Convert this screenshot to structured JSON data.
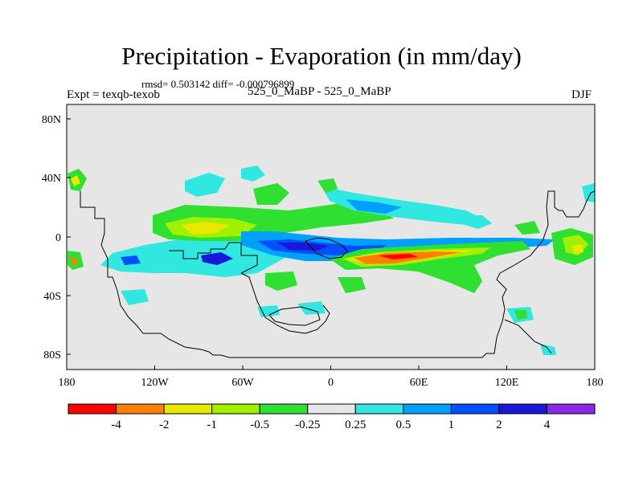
{
  "title": "Precipitation - Evaporation (in mm/day)",
  "stats": "rmsd= 0.503142 diff= -0.000796899",
  "expt": "Expt = texqb-texob",
  "subtitle": "525_0_MaBP - 525_0_MaBP",
  "season": "DJF",
  "axes": {
    "x_ticks": [
      "180",
      "120W",
      "60W",
      "0",
      "60E",
      "120E",
      "180"
    ],
    "y_ticks": [
      "80N",
      "40N",
      "0",
      "40S",
      "80S"
    ]
  },
  "colorbar": {
    "colors": [
      "#ff0000",
      "#ff8000",
      "#e8e800",
      "#a0f000",
      "#30e030",
      "#e6e6e6",
      "#30e8e0",
      "#00a0ff",
      "#0050ff",
      "#1a18d8",
      "#8a28e8"
    ],
    "labels": [
      "-4",
      "-2",
      "-1",
      "-0.5",
      "-0.25",
      "0.25",
      "0.5",
      "1",
      "2",
      "4"
    ]
  },
  "colors": {
    "background": "#e6e6e6",
    "land_outline": "#000000"
  }
}
